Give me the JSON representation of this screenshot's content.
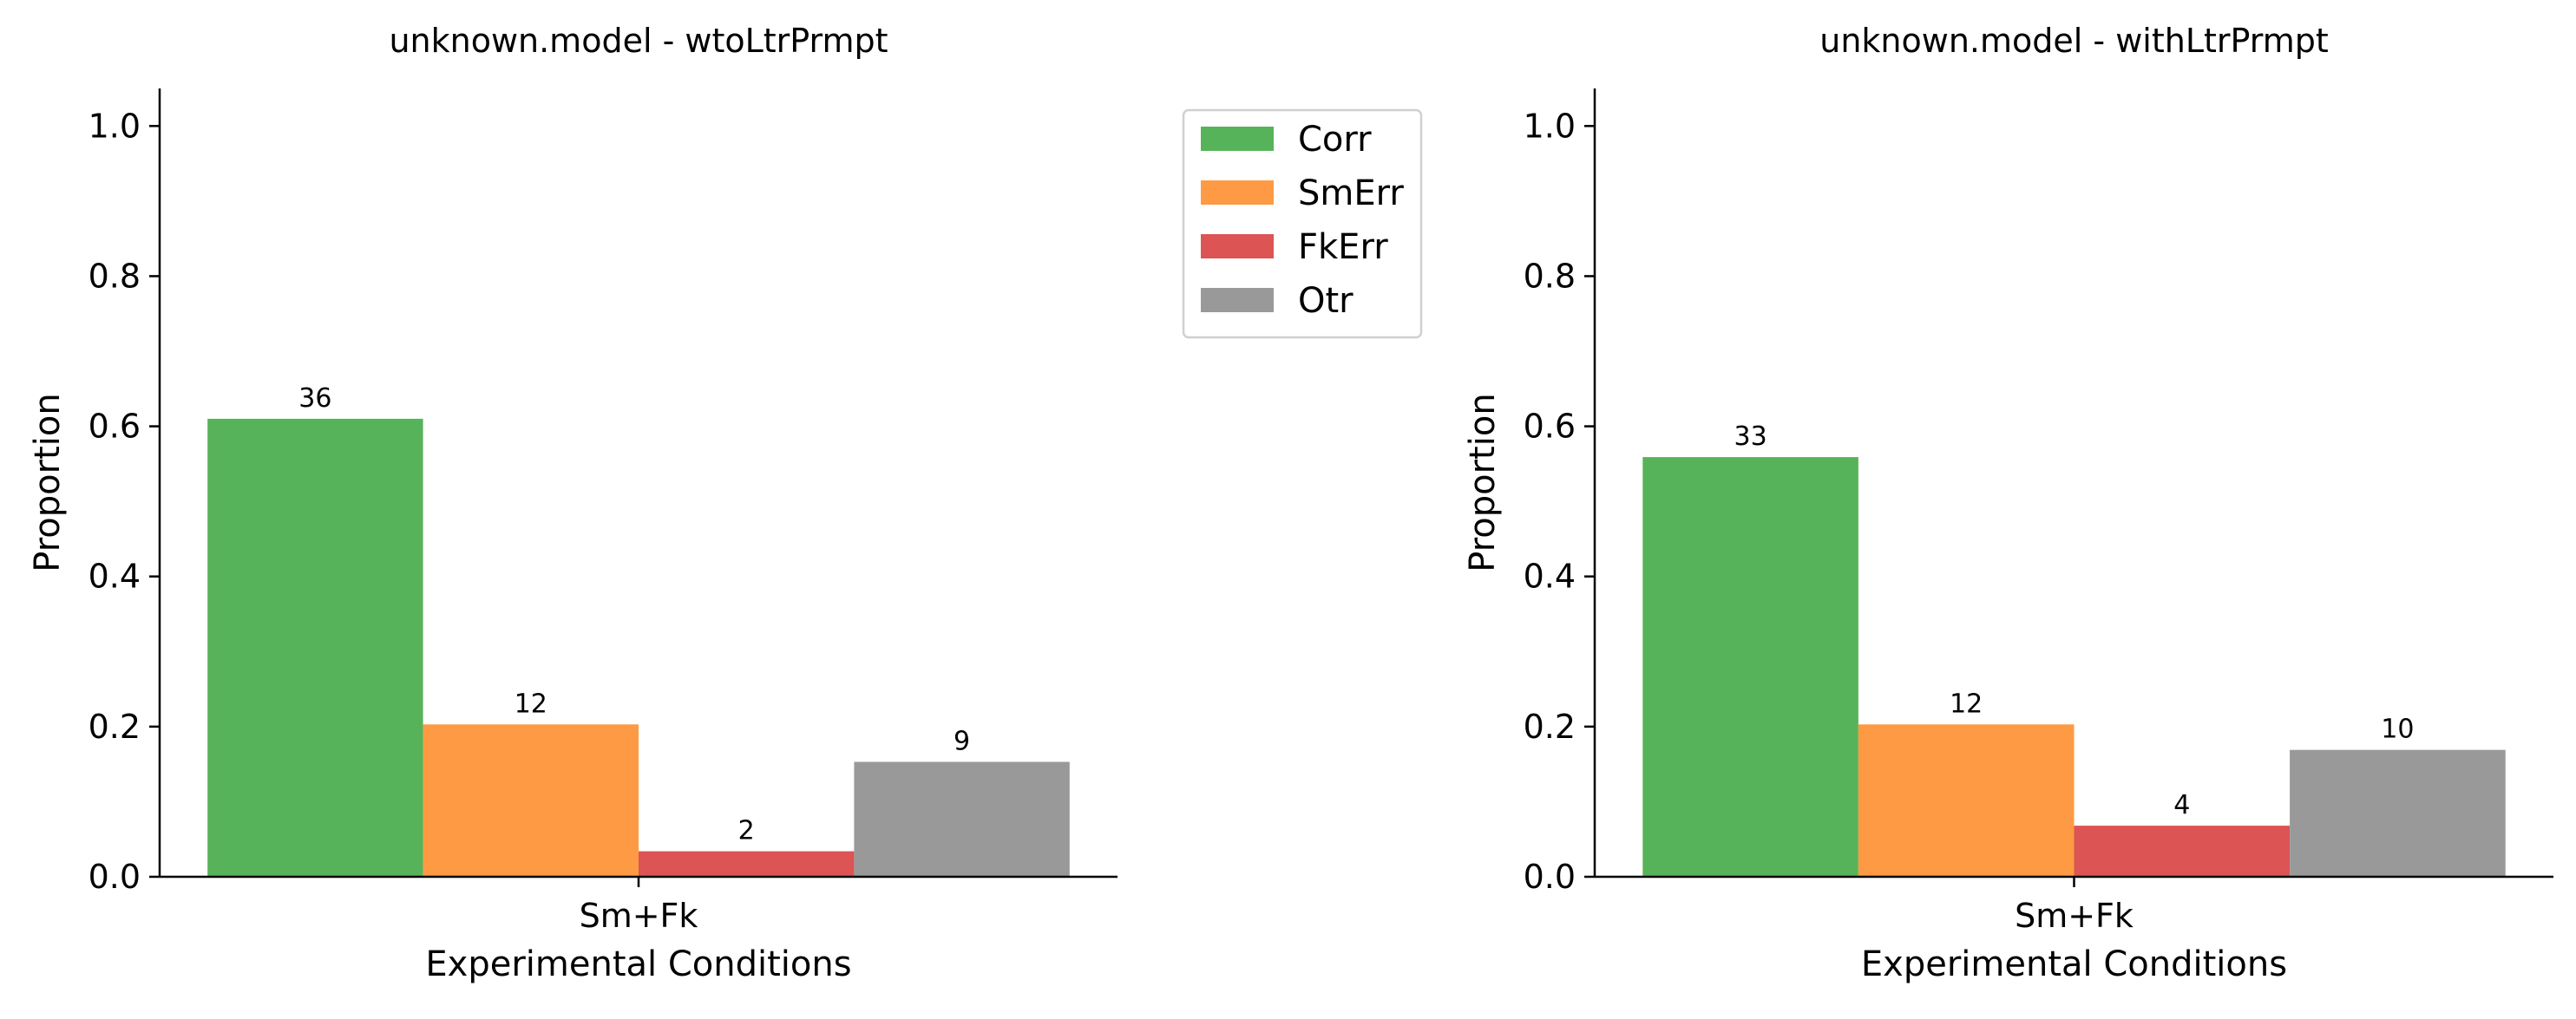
{
  "chart_data": [
    {
      "type": "bar",
      "title": "unknown.model - wtoLtrPrmpt",
      "xlabel": "Experimental Conditions",
      "ylabel": "Proportion",
      "ylim": [
        0,
        1.05
      ],
      "yticks": [
        0.0,
        0.2,
        0.4,
        0.6,
        0.8,
        1.0
      ],
      "yticklabels": [
        "0.0",
        "0.2",
        "0.4",
        "0.6",
        "0.8",
        "1.0"
      ],
      "categories": [
        "Sm+Fk"
      ],
      "series": [
        {
          "name": "Corr",
          "values": [
            0.61
          ],
          "count_label": "36",
          "color": "#57b359"
        },
        {
          "name": "SmErr",
          "values": [
            0.203
          ],
          "count_label": "12",
          "color": "#fd9a43"
        },
        {
          "name": "FkErr",
          "values": [
            0.034
          ],
          "count_label": "2",
          "color": "#dc5454"
        },
        {
          "name": "Otr",
          "values": [
            0.153
          ],
          "count_label": "9",
          "color": "#999999"
        }
      ],
      "legend": "outside-top-right"
    },
    {
      "type": "bar",
      "title": "unknown.model - withLtrPrmpt",
      "xlabel": "Experimental Conditions",
      "ylabel": "Proportion",
      "ylim": [
        0,
        1.05
      ],
      "yticks": [
        0.0,
        0.2,
        0.4,
        0.6,
        0.8,
        1.0
      ],
      "yticklabels": [
        "0.0",
        "0.2",
        "0.4",
        "0.6",
        "0.8",
        "1.0"
      ],
      "categories": [
        "Sm+Fk"
      ],
      "series": [
        {
          "name": "Corr",
          "values": [
            0.559
          ],
          "count_label": "33",
          "color": "#57b359"
        },
        {
          "name": "SmErr",
          "values": [
            0.203
          ],
          "count_label": "12",
          "color": "#fd9a43"
        },
        {
          "name": "FkErr",
          "values": [
            0.068
          ],
          "count_label": "4",
          "color": "#dc5454"
        },
        {
          "name": "Otr",
          "values": [
            0.169
          ],
          "count_label": "10",
          "color": "#999999"
        }
      ]
    }
  ]
}
